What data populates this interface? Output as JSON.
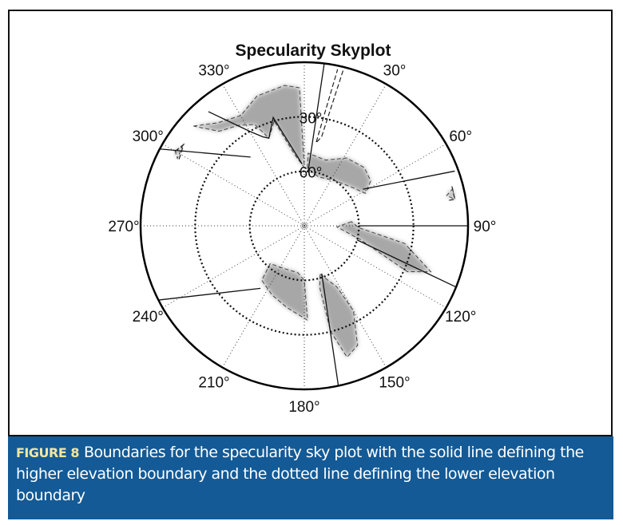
{
  "caption": {
    "label": "FIGURE 8",
    "text": "Boundaries for the specularity sky plot with the solid line defining the higher elevation boundary and the dotted line defining the lower elevation boundary"
  },
  "chart_data": {
    "type": "polar",
    "title": "Specularity Skyplot",
    "azimuth_ticks": [
      "30°",
      "60°",
      "90°",
      "120°",
      "150°",
      "180°",
      "210°",
      "240°",
      "270°",
      "300°",
      "330°"
    ],
    "azimuth_tick_values": [
      30,
      60,
      90,
      120,
      150,
      180,
      210,
      240,
      270,
      300,
      330
    ],
    "elevation_ticks": [
      "30°",
      "60°"
    ],
    "elevation_tick_values": [
      30,
      60
    ],
    "elevation_range": [
      0,
      90
    ],
    "grid": true,
    "shaded_regions": [
      {
        "points": [
          [
            -48,
            8
          ],
          [
            -40,
            16
          ],
          [
            -30,
            20
          ],
          [
            -20,
            14
          ],
          [
            -8,
            12
          ],
          [
            -2,
            14
          ],
          [
            0,
            58
          ],
          [
            -8,
            50
          ],
          [
            -16,
            30
          ],
          [
            -22,
            38
          ],
          [
            -26,
            28
          ],
          [
            -33,
            24
          ],
          [
            -42,
            20
          ]
        ]
      },
      {
        "points": [
          [
            3,
            58
          ],
          [
            3,
            50
          ],
          [
            18,
            52
          ],
          [
            32,
            46
          ],
          [
            46,
            44
          ],
          [
            56,
            46
          ],
          [
            62,
            52
          ],
          [
            52,
            56
          ],
          [
            34,
            60
          ],
          [
            16,
            62
          ]
        ]
      },
      {
        "points": [
          [
            85,
            64
          ],
          [
            92,
            72
          ],
          [
            104,
            58
          ],
          [
            114,
            28
          ],
          [
            110,
            16
          ],
          [
            100,
            34
          ],
          [
            92,
            60
          ]
        ]
      },
      {
        "points": [
          [
            178,
            38
          ],
          [
            192,
            44
          ],
          [
            205,
            48
          ],
          [
            218,
            52
          ],
          [
            222,
            62
          ],
          [
            205,
            64
          ],
          [
            188,
            64
          ],
          [
            180,
            60
          ]
        ]
      },
      {
        "points": [
          [
            162,
            62
          ],
          [
            152,
            52
          ],
          [
            150,
            36
          ],
          [
            156,
            18
          ],
          [
            162,
            14
          ],
          [
            166,
            30
          ],
          [
            166,
            55
          ]
        ]
      },
      {
        "points": [
          [
            -60,
            8
          ],
          [
            -57,
            10
          ],
          [
            -62,
            11
          ]
        ]
      },
      {
        "points": [
          [
            76,
            6
          ],
          [
            80,
            6
          ],
          [
            78,
            10
          ]
        ]
      }
    ],
    "solid_boundaries": [
      [
        [
          7,
          0
        ],
        [
          4,
          60
        ]
      ],
      [
        [
          -40,
          8
        ],
        [
          -30,
          30
        ],
        [
          -25,
          36
        ],
        [
          -22,
          38
        ],
        [
          -16,
          28
        ],
        [
          -2,
          56
        ]
      ],
      [
        [
          -62,
          0
        ],
        [
          -38,
          42
        ]
      ],
      [
        [
          70,
          2
        ],
        [
          58,
          52
        ]
      ],
      [
        [
          90,
          60
        ],
        [
          90,
          0
        ]
      ],
      [
        [
          105,
          60
        ],
        [
          112,
          0
        ]
      ],
      [
        [
          160,
          62
        ],
        [
          168,
          0
        ]
      ],
      [
        [
          215,
          48
        ],
        [
          243,
          0
        ]
      ]
    ],
    "dashed_boundaries": [
      [
        [
          14,
          2
        ],
        [
          11,
          40
        ],
        [
          8,
          44
        ],
        [
          12,
          2
        ]
      ],
      [
        [
          -60,
          8
        ],
        [
          -56,
          10
        ],
        [
          -62,
          12
        ]
      ],
      [
        [
          75,
          6
        ],
        [
          80,
          6
        ],
        [
          80,
          10
        ]
      ]
    ]
  }
}
